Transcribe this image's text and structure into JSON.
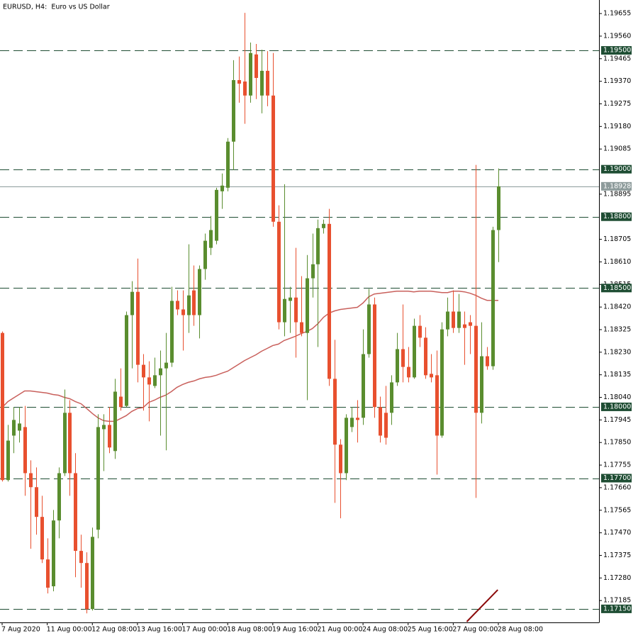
{
  "chart_data": {
    "type": "candlestick",
    "title": "EURUSD, H4:  Euro vs US Dollar",
    "categories": [
      "7 Aug 2020",
      null,
      null,
      null,
      null,
      null,
      null,
      null,
      "11 Aug 00:00",
      null,
      null,
      null,
      null,
      null,
      null,
      null,
      "12 Aug 08:00",
      null,
      null,
      null,
      null,
      null,
      null,
      null,
      "13 Aug 16:00",
      null,
      null,
      null,
      null,
      null,
      null,
      null,
      "17 Aug 00:00",
      null,
      null,
      null,
      null,
      null,
      null,
      null,
      "18 Aug 08:00",
      null,
      null,
      null,
      null,
      null,
      null,
      null,
      "19 Aug 16:00",
      null,
      null,
      null,
      null,
      null,
      null,
      null,
      "21 Aug 00:00",
      null,
      null,
      null,
      null,
      null,
      null,
      null,
      "24 Aug 08:00",
      null,
      null,
      null,
      null,
      null,
      null,
      null,
      "25 Aug 16:00",
      null,
      null,
      null,
      null,
      null,
      null,
      null,
      "27 Aug 00:00",
      null,
      null,
      null,
      null,
      null,
      null,
      null,
      "28 Aug 08:00"
    ],
    "open": [
      1.18311,
      1.17692,
      1.17879,
      1.179,
      1.17915,
      1.17721,
      1.17662,
      1.17537,
      1.17358,
      1.17245,
      1.17522,
      1.17721,
      1.17975,
      1.17721,
      1.17394,
      1.17343,
      1.17149,
      1.17483,
      1.17906,
      1.17924,
      1.17814,
      1.18043,
      1.18004,
      1.18386,
      1.18484,
      1.18177,
      1.18124,
      1.18088,
      1.18133,
      1.18162,
      1.18186,
      1.18446,
      1.1841,
      1.18386,
      1.1849,
      1.18386,
      1.1858,
      1.18669,
      1.18699,
      1.18907,
      1.18922,
      1.19116,
      1.19375,
      1.19369,
      1.1931,
      1.19483,
      1.1931,
      1.19414,
      1.1931,
      1.18779,
      1.18356,
      1.18446,
      1.1846,
      1.18356,
      1.18311,
      1.18541,
      1.186,
      1.18752,
      1.1877,
      1.18118,
      1.17841,
      1.17721,
      1.17915,
      1.17954,
      1.17954,
      1.18222,
      1.18431,
      1.17999,
      1.17975,
      1.17975,
      1.18103,
      1.18243,
      1.18168,
      1.18124,
      1.18341,
      1.18291,
      1.18139,
      1.18133,
      1.17879,
      1.18326,
      1.18401,
      1.18332,
      1.18347,
      1.18356,
      1.18341,
      1.17975,
      1.18213,
      1.18171,
      1.18744
    ],
    "high": [
      1.18317,
      1.17924,
      1.17999,
      1.17999,
      1.18004,
      1.17775,
      1.17745,
      1.17626,
      1.17447,
      1.17566,
      1.17745,
      1.18073,
      1.18028,
      1.17805,
      1.17462,
      1.17388,
      1.17492,
      1.17969,
      1.17969,
      1.17999,
      1.18118,
      1.18162,
      1.18401,
      1.18529,
      1.18624,
      1.18222,
      1.18192,
      1.18207,
      1.18237,
      1.18311,
      1.18505,
      1.1849,
      1.1849,
      1.18684,
      1.18595,
      1.18595,
      1.18729,
      1.18803,
      1.18922,
      1.18982,
      1.19131,
      1.19459,
      1.19474,
      1.19658,
      1.19533,
      1.19527,
      1.19503,
      1.19497,
      1.19489,
      1.18848,
      1.18937,
      1.18505,
      1.18669,
      1.1855,
      1.18639,
      1.18729,
      1.18788,
      1.18788,
      1.18833,
      1.18282,
      1.17864,
      1.17969,
      1.17999,
      1.18028,
      1.18326,
      1.18496,
      1.1846,
      1.18043,
      1.18088,
      1.18133,
      1.18311,
      1.18431,
      1.18252,
      1.18371,
      1.18386,
      1.18335,
      1.18222,
      1.18237,
      1.18356,
      1.1846,
      1.1849,
      1.18475,
      1.18401,
      1.18386,
      1.19018,
      1.18356,
      1.18252,
      1.18758,
      1.19003
    ],
    "low": [
      1.17686,
      1.17686,
      1.17805,
      1.1785,
      1.17626,
      1.17403,
      1.17462,
      1.17343,
      1.17215,
      1.17224,
      1.17447,
      1.17709,
      1.17626,
      1.17283,
      1.17239,
      1.17131,
      1.17143,
      1.17447,
      1.1773,
      1.17805,
      1.17781,
      1.17984,
      1.17999,
      1.18162,
      1.18103,
      1.17984,
      1.17939,
      1.18079,
      1.17879,
      1.17817,
      1.18168,
      1.18386,
      1.18237,
      1.18311,
      1.18341,
      1.18288,
      1.18535,
      1.18639,
      1.18684,
      1.18833,
      1.18907,
      1.18997,
      1.1928,
      1.19191,
      1.1928,
      1.19295,
      1.19235,
      1.19265,
      1.18758,
      1.18326,
      1.18297,
      1.18311,
      1.18207,
      1.18297,
      1.18028,
      1.1846,
      1.18252,
      1.18729,
      1.18088,
      1.17596,
      1.17531,
      1.17692,
      1.17894,
      1.1785,
      1.17924,
      1.18207,
      1.17954,
      1.1785,
      1.17841,
      1.17924,
      1.18088,
      1.18103,
      1.18103,
      1.18118,
      1.18252,
      1.18118,
      1.18103,
      1.17715,
      1.1787,
      1.18297,
      1.18311,
      1.18311,
      1.18177,
      1.18222,
      1.17617,
      1.1793,
      1.18156,
      1.18156,
      1.18609
    ],
    "close": [
      1.17692,
      1.17858,
      1.17945,
      1.1793,
      1.17721,
      1.17662,
      1.17537,
      1.17358,
      1.17239,
      1.17522,
      1.17721,
      1.17975,
      1.17721,
      1.17394,
      1.17343,
      1.17149,
      1.17453,
      1.17915,
      1.17924,
      1.17829,
      1.18064,
      1.17999,
      1.18386,
      1.18484,
      1.18177,
      1.18124,
      1.18094,
      1.18133,
      1.18162,
      1.18186,
      1.18446,
      1.1841,
      1.18386,
      1.18469,
      1.18386,
      1.1858,
      1.18699,
      1.18744,
      1.18913,
      1.18931,
      1.19116,
      1.19375,
      1.1936,
      1.1931,
      1.19489,
      1.19384,
      1.19414,
      1.1931,
      1.18779,
      1.18356,
      1.18454,
      1.1846,
      1.18356,
      1.18311,
      1.18541,
      1.186,
      1.18752,
      1.1877,
      1.18118,
      1.17841,
      1.17721,
      1.17954,
      1.17954,
      1.17945,
      1.18222,
      1.18431,
      1.17999,
      1.17879,
      1.1787,
      1.18103,
      1.18243,
      1.18168,
      1.18124,
      1.18341,
      1.18291,
      1.18133,
      1.18124,
      1.17879,
      1.18326,
      1.18401,
      1.18332,
      1.18401,
      1.18332,
      1.18341,
      1.17975,
      1.18213,
      1.18171,
      1.18744,
      1.18928
    ],
    "up_color": "#5a8d2f",
    "down_color": "#e8502f",
    "ma": {
      "color": "#c9605c",
      "values": [
        1.17997,
        1.18022,
        1.18037,
        1.18052,
        1.18067,
        1.18067,
        1.18064,
        1.18061,
        1.18058,
        1.18052,
        1.18049,
        1.1804,
        1.18034,
        1.18022,
        1.18013,
        1.17993,
        1.17972,
        1.17954,
        1.17942,
        1.17939,
        1.17939,
        1.17951,
        1.17963,
        1.17981,
        1.17993,
        1.17997,
        1.18019,
        1.18028,
        1.1804,
        1.18049,
        1.18064,
        1.18082,
        1.18094,
        1.18103,
        1.18109,
        1.18118,
        1.18124,
        1.18127,
        1.18133,
        1.18142,
        1.1815,
        1.18165,
        1.1818,
        1.18195,
        1.18207,
        1.18219,
        1.18234,
        1.18246,
        1.18258,
        1.18264,
        1.18279,
        1.18288,
        1.18297,
        1.18308,
        1.18317,
        1.18329,
        1.1835,
        1.18377,
        1.18395,
        1.18404,
        1.1841,
        1.18413,
        1.18416,
        1.18419,
        1.18437,
        1.18463,
        1.18475,
        1.18478,
        1.18481,
        1.18484,
        1.18487,
        1.18487,
        1.18487,
        1.18484,
        1.18487,
        1.18487,
        1.18487,
        1.18484,
        1.18481,
        1.18481,
        1.18487,
        1.18487,
        1.18484,
        1.18478,
        1.18469,
        1.18457,
        1.18448,
        1.18448,
        1.18448
      ]
    },
    "levels": [
      {
        "value": 1.195,
        "label": "1.19500"
      },
      {
        "value": 1.19,
        "label": "1.19000"
      },
      {
        "value": 1.188,
        "label": "1.18800"
      },
      {
        "value": 1.185,
        "label": "1.18500"
      },
      {
        "value": 1.18,
        "label": "1.18000"
      },
      {
        "value": 1.177,
        "label": "1.17700"
      },
      {
        "value": 1.1715,
        "label": "1.17150"
      }
    ],
    "level_color": "#1e4d33",
    "last_price": 1.18928,
    "last_price_color": "#8d9b9b",
    "trendline": {
      "x": [
        82.4,
        87.9
      ],
      "y": [
        1.17096,
        1.1723
      ],
      "color": "#8b0a0a"
    },
    "ylim": [
      1.17093,
      1.19712
    ],
    "yticks": [
      1.19655,
      {
        "value": 1.1956,
        "label": "1.19560"
      },
      1.19465,
      {
        "value": 1.1937,
        "label": "1.19370"
      },
      1.19275,
      {
        "value": 1.1918,
        "label": "1.19180"
      },
      1.19085,
      1.18895,
      1.18705,
      {
        "value": 1.1861,
        "label": "1.18610"
      },
      1.18515,
      {
        "value": 1.1842,
        "label": "1.18420"
      },
      1.18325,
      {
        "value": 1.1823,
        "label": "1.18230"
      },
      1.18135,
      {
        "value": 1.1804,
        "label": "1.18040"
      },
      1.17945,
      {
        "value": 1.1785,
        "label": "1.17850"
      },
      1.17755,
      {
        "value": 1.1766,
        "label": "1.17660"
      },
      1.17565,
      {
        "value": 1.1747,
        "label": "1.17470"
      },
      1.17375,
      {
        "value": 1.1728,
        "label": "1.17280"
      },
      1.17185
    ]
  }
}
